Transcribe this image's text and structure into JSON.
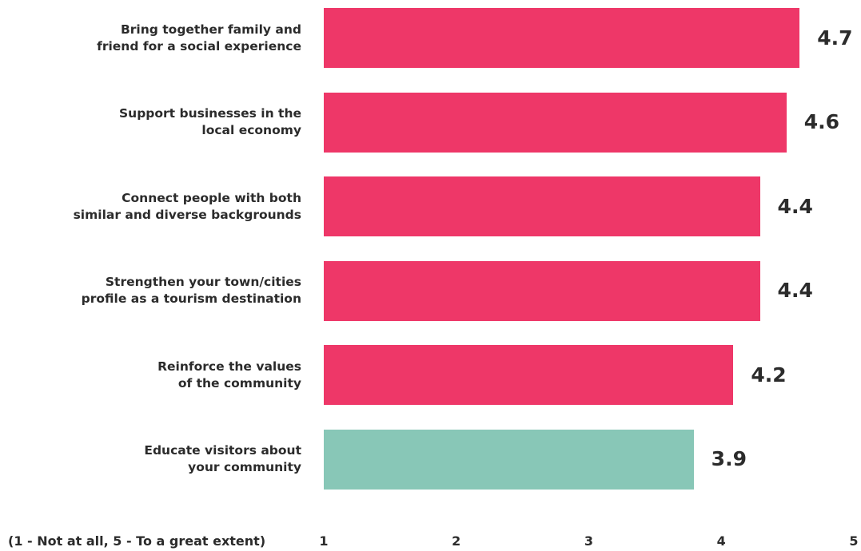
{
  "chart_data": {
    "type": "bar",
    "orientation": "horizontal",
    "categories": [
      [
        "Bring together family and",
        "friend for a social experience"
      ],
      [
        "Support businesses in the",
        "local economy"
      ],
      [
        "Connect people with both",
        "similar and diverse backgrounds"
      ],
      [
        "Strengthen your town/cities",
        "profile as a tourism destination"
      ],
      [
        "Reinforce the values",
        "of the community"
      ],
      [
        "Educate visitors about",
        "your community"
      ]
    ],
    "values": [
      4.7,
      4.6,
      4.4,
      4.4,
      4.2,
      3.9
    ],
    "value_labels": [
      "4.7",
      "4.6",
      "4.4",
      "4.4",
      "4.2",
      "3.9"
    ],
    "bar_colors": [
      "#ee3768",
      "#ee3768",
      "#ee3768",
      "#ee3768",
      "#ee3768",
      "#88c7b7"
    ],
    "xlim": [
      1,
      5
    ],
    "x_ticks": [
      "1",
      "2",
      "3",
      "4",
      "5"
    ],
    "x_axis_note": "(1 - Not at all, 5 - To a great extent)",
    "grid": false
  }
}
